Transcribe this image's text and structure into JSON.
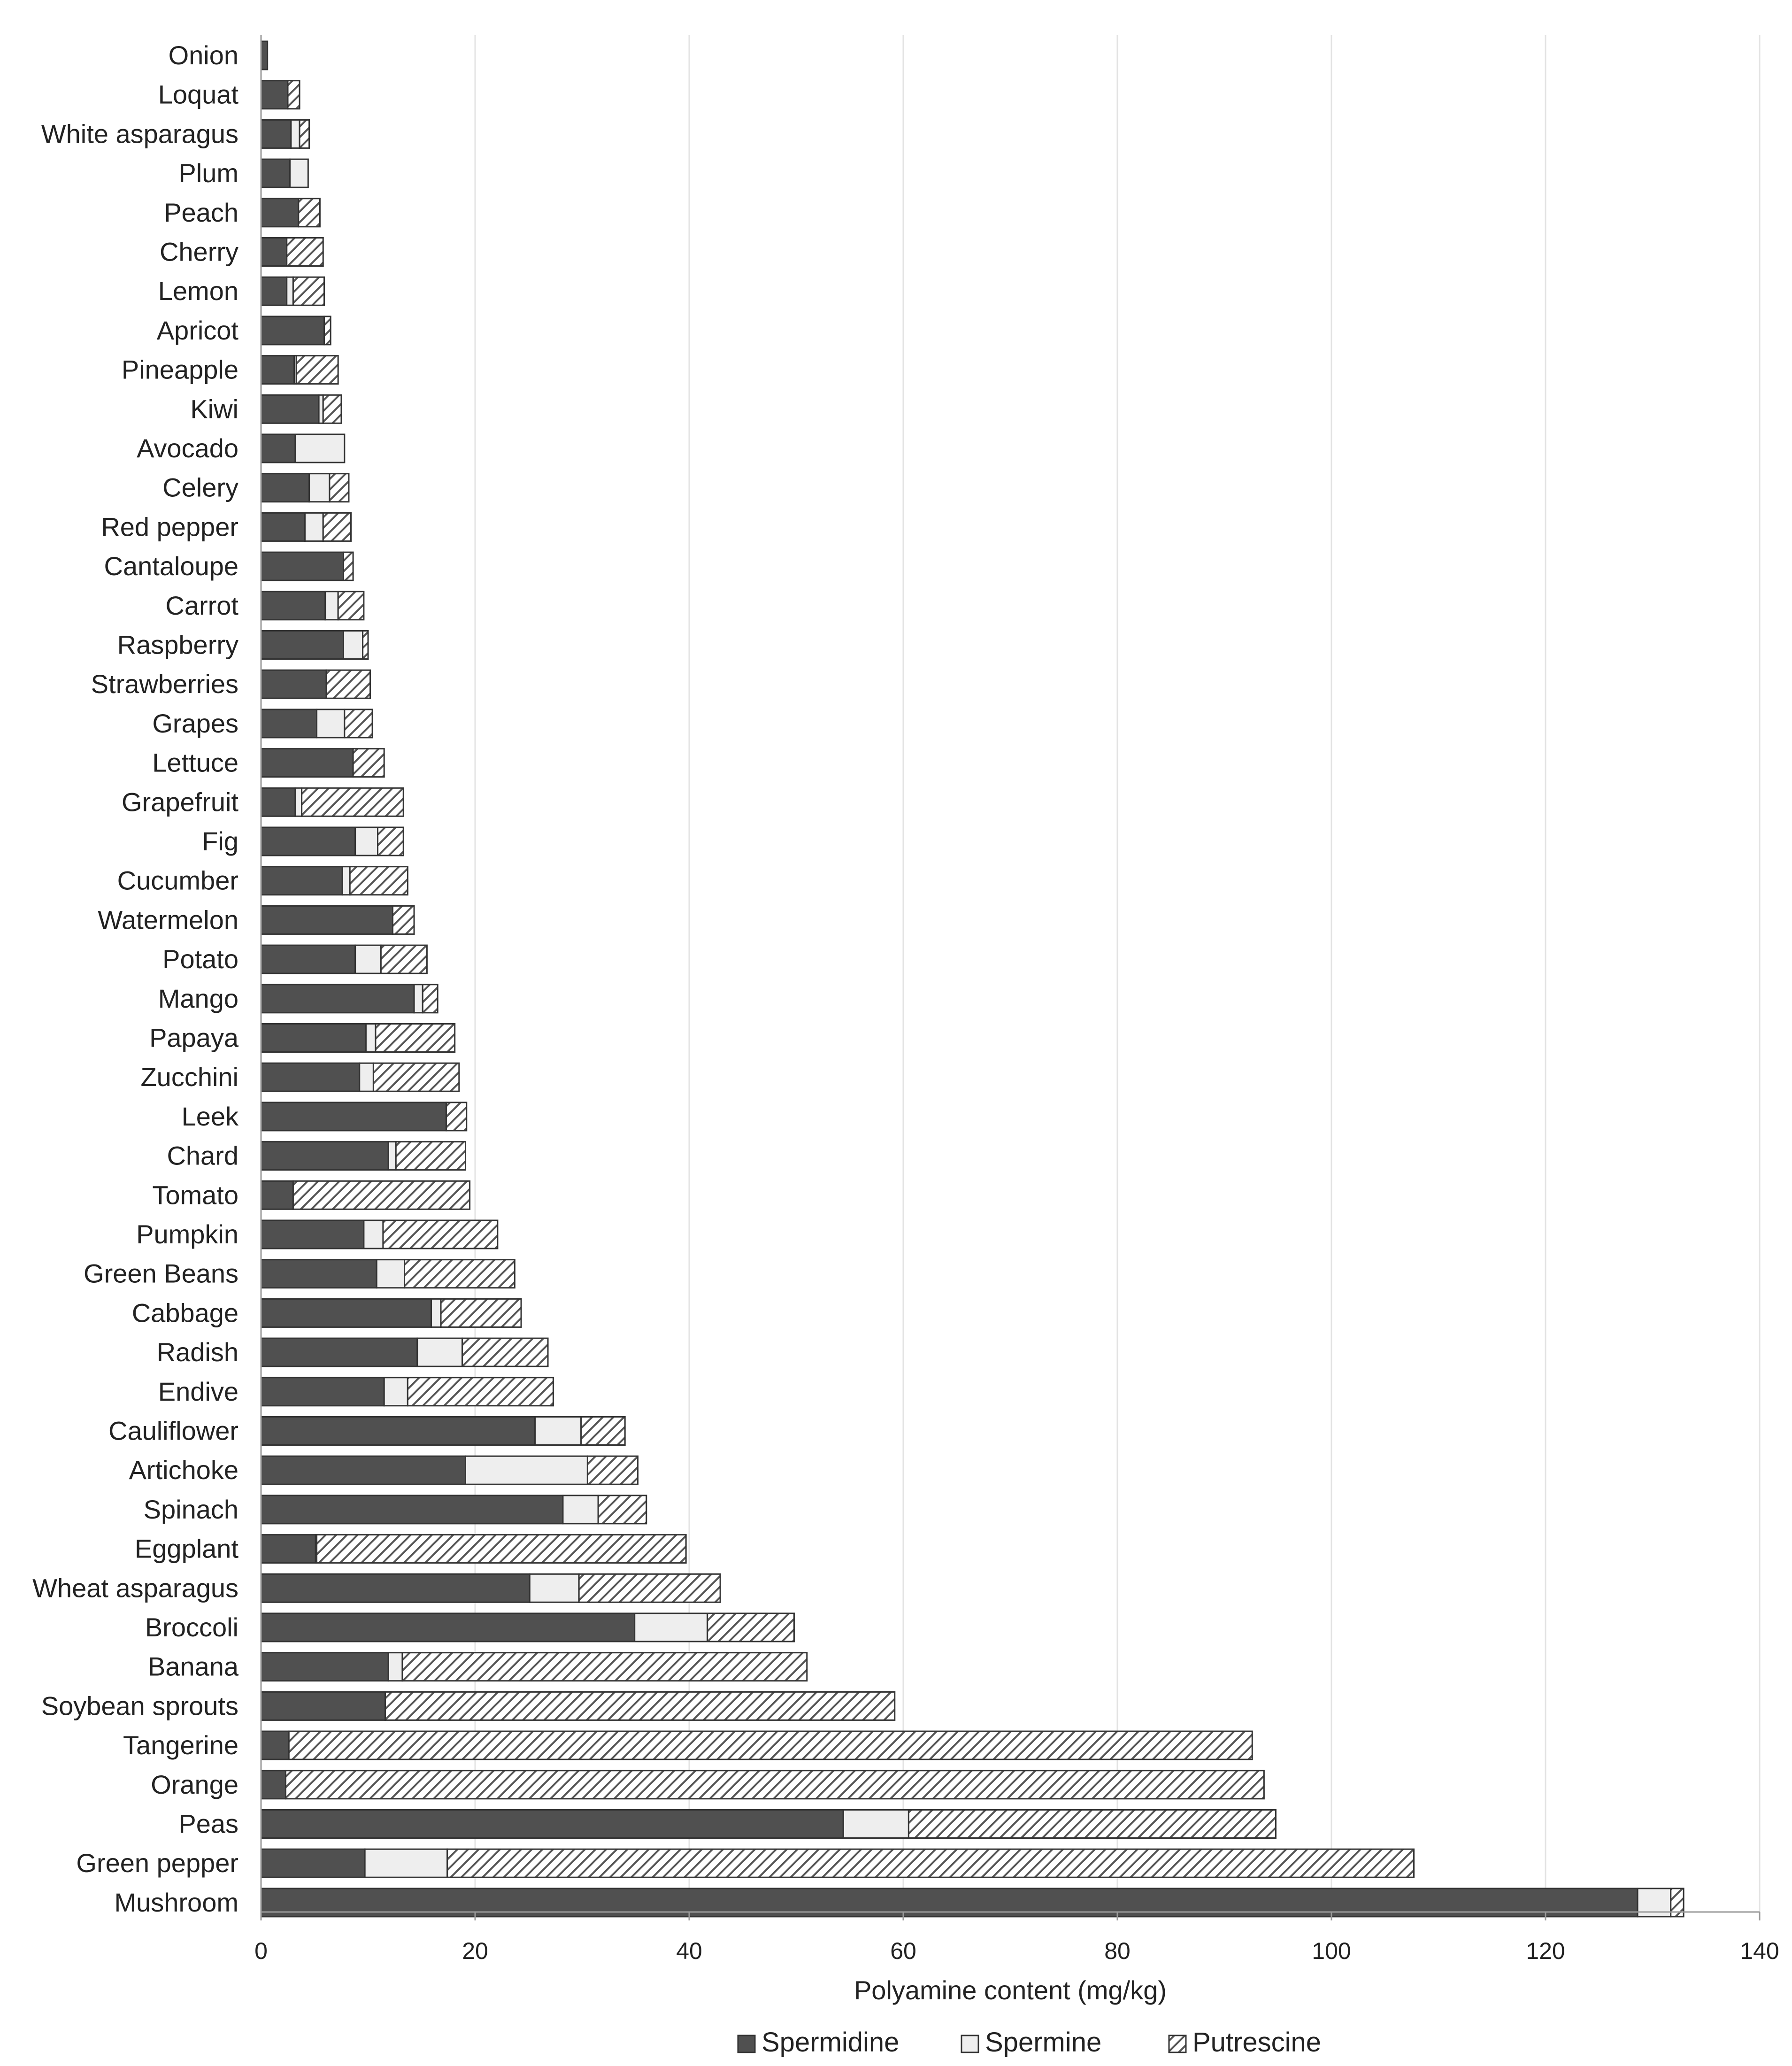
{
  "chart_data": {
    "type": "bar",
    "orientation": "horizontal",
    "stacked": true,
    "title": "",
    "xlabel": "Polyamine content (mg/kg)",
    "ylabel": "",
    "xlim": [
      0,
      140
    ],
    "xticks": [
      0,
      20,
      40,
      60,
      80,
      100,
      120,
      140
    ],
    "grid": "vertical",
    "legend_position": "bottom-center",
    "categories": [
      "Onion",
      "Loquat",
      "White asparagus",
      "Plum",
      "Peach",
      "Cherry",
      "Lemon",
      "Apricot",
      "Pineapple",
      "Kiwi",
      "Avocado",
      "Celery",
      "Red pepper",
      "Cantaloupe",
      "Carrot",
      "Raspberry",
      "Strawberries",
      "Grapes",
      "Lettuce",
      "Grapefruit",
      "Fig",
      "Cucumber",
      "Watermelon",
      "Potato",
      "Mango",
      "Papaya",
      "Zucchini",
      "Leek",
      "Chard",
      "Tomato",
      "Pumpkin",
      "Green Beans",
      "Cabbage",
      "Radish",
      "Endive",
      "Cauliflower",
      "Artichoke",
      "Spinach",
      "Eggplant",
      "Wheat asparagus",
      "Broccoli",
      "Banana",
      "Soybean sprouts",
      "Tangerine",
      "Orange",
      "Peas",
      "Green pepper",
      "Mushroom"
    ],
    "series": [
      {
        "name": "Spermidine",
        "color": "#505050",
        "pattern": "solid",
        "values": [
          0.6,
          2.5,
          2.8,
          2.7,
          3.5,
          2.4,
          2.4,
          5.9,
          3.1,
          5.4,
          3.2,
          4.5,
          4.1,
          7.7,
          6.0,
          7.7,
          6.1,
          5.2,
          8.6,
          3.2,
          8.8,
          7.6,
          12.3,
          8.8,
          14.3,
          9.8,
          9.2,
          17.3,
          11.9,
          3.0,
          9.6,
          10.8,
          15.9,
          14.6,
          11.5,
          25.6,
          19.1,
          28.2,
          5.1,
          25.1,
          34.9,
          11.9,
          11.6,
          2.6,
          2.3,
          54.4,
          9.7,
          128.6
        ]
      },
      {
        "name": "Spermine",
        "color": "#eeeeee",
        "pattern": "solid",
        "values": [
          0.0,
          0.0,
          0.8,
          1.7,
          0.0,
          0.0,
          0.6,
          0.0,
          0.2,
          0.4,
          4.6,
          1.9,
          1.7,
          0.0,
          1.2,
          1.8,
          0.0,
          2.6,
          0.0,
          0.6,
          2.1,
          0.7,
          0.0,
          2.4,
          0.8,
          0.9,
          1.3,
          0.0,
          0.7,
          0.0,
          1.8,
          2.6,
          0.9,
          4.2,
          2.2,
          4.3,
          11.4,
          3.3,
          0.1,
          4.6,
          6.8,
          1.3,
          0.0,
          0.0,
          0.0,
          6.1,
          7.7,
          3.1
        ]
      },
      {
        "name": "Putrescine",
        "color": "#9a9a9a",
        "pattern": "hatched",
        "values": [
          0.0,
          1.1,
          0.9,
          0.0,
          2.0,
          3.4,
          2.9,
          0.6,
          3.9,
          1.7,
          0.0,
          1.8,
          2.6,
          0.9,
          2.4,
          0.5,
          4.1,
          2.6,
          2.9,
          9.5,
          2.4,
          5.4,
          2.0,
          4.3,
          1.4,
          7.4,
          8.0,
          1.9,
          6.5,
          16.5,
          10.7,
          10.3,
          7.5,
          8.0,
          13.6,
          4.1,
          4.7,
          4.5,
          34.5,
          13.2,
          8.1,
          37.8,
          47.6,
          90.0,
          91.4,
          34.3,
          90.3,
          1.2
        ]
      }
    ]
  }
}
